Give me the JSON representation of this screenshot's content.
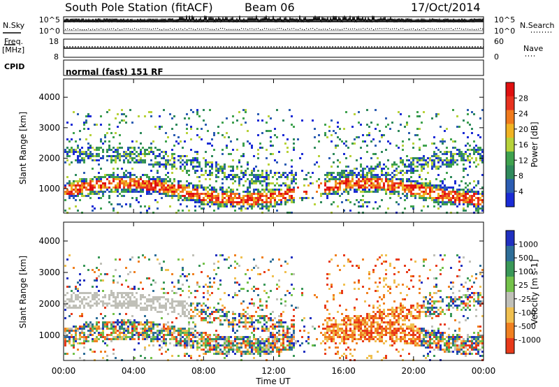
{
  "header": {
    "station": "South Pole Station (fitACF)",
    "beam": "Beam 06",
    "date": "17/Oct/2014"
  },
  "side_labels": {
    "nsky": "N.Sky",
    "freq_line1": "Freq.",
    "freq_line2": "[MHz]",
    "cpid": "CPID",
    "nsearch": "N.Search",
    "nave": "Nave",
    "cpid_value": "normal (fast) 151 RF"
  },
  "noise_panel": {
    "left_ticks": [
      "10^5",
      "10^0"
    ],
    "right_ticks": [
      "10^5",
      "10^0"
    ]
  },
  "freq_panel": {
    "left_ticks": [
      "18",
      "8"
    ],
    "right_ticks": [
      "60",
      "0"
    ]
  },
  "chart_data": [
    {
      "type": "heatmap",
      "name": "power",
      "ylabel": "Slant Range [km]",
      "ylim": [
        200,
        4600
      ],
      "y_ticks": [
        "1000",
        "2000",
        "3000",
        "4000"
      ],
      "colorbar_label": "Power [dB]",
      "colorbar_ticks": [
        "4",
        "8",
        "12",
        "16",
        "20",
        "24",
        "28"
      ],
      "colors": [
        "#1a2bd6",
        "#2c5db3",
        "#2f8a5c",
        "#3fa24e",
        "#b7d23a",
        "#f0b323",
        "#f07a1c",
        "#e8321f",
        "#e01010"
      ]
    },
    {
      "type": "heatmap",
      "name": "velocity",
      "ylabel": "Slant Range [km]",
      "ylim": [
        200,
        4600
      ],
      "y_ticks": [
        "1000",
        "2000",
        "3000",
        "4000"
      ],
      "colorbar_label": "Velocity [m s-1]",
      "colorbar_ticks": [
        "1000",
        "500",
        "100",
        "25",
        "-25",
        "-100",
        "-500",
        "-1000"
      ],
      "colors": [
        "#2030c0",
        "#2e6e98",
        "#3a9858",
        "#74c24a",
        "#c0c0b8",
        "#f0c050",
        "#f08020",
        "#e83a1a"
      ]
    }
  ],
  "x_axis": {
    "label": "Time UT",
    "ticks": [
      "00:00",
      "04:00",
      "08:00",
      "12:00",
      "16:00",
      "20:00",
      "00:00"
    ]
  }
}
